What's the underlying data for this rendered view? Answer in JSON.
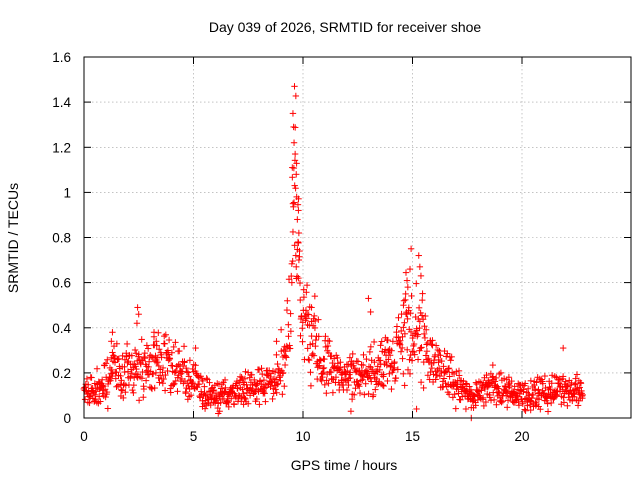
{
  "chart_data": {
    "type": "scatter",
    "title": "Day 039 of 2026, SRMTID for receiver shoe",
    "xlabel": "GPS time / hours",
    "ylabel": "SRMTID / TECUs",
    "xlim": [
      0,
      25
    ],
    "ylim": [
      0,
      1.6
    ],
    "xticks": [
      "0",
      "5",
      "10",
      "15",
      "20"
    ],
    "yticks": [
      "0",
      "0.2",
      "0.4",
      "0.6",
      "0.8",
      "1",
      "1.2",
      "1.4",
      "1.6"
    ],
    "marker": "+",
    "color": "#ff0000",
    "grid": true,
    "x_range_of_data": [
      0,
      22.8
    ],
    "profile": [
      [
        0.0,
        0.11
      ],
      [
        0.5,
        0.12
      ],
      [
        1.0,
        0.17
      ],
      [
        1.3,
        0.24
      ],
      [
        1.7,
        0.19
      ],
      [
        2.0,
        0.21
      ],
      [
        2.5,
        0.22
      ],
      [
        3.0,
        0.24
      ],
      [
        3.4,
        0.26
      ],
      [
        3.8,
        0.23
      ],
      [
        4.3,
        0.2
      ],
      [
        4.8,
        0.18
      ],
      [
        5.2,
        0.15
      ],
      [
        5.5,
        0.1
      ],
      [
        6.0,
        0.09
      ],
      [
        6.5,
        0.11
      ],
      [
        7.0,
        0.13
      ],
      [
        7.5,
        0.14
      ],
      [
        8.0,
        0.13
      ],
      [
        8.5,
        0.16
      ],
      [
        8.9,
        0.2
      ],
      [
        9.2,
        0.26
      ],
      [
        9.45,
        0.55
      ],
      [
        9.6,
        1.05
      ],
      [
        9.75,
        0.85
      ],
      [
        9.9,
        0.5
      ],
      [
        10.2,
        0.36
      ],
      [
        10.6,
        0.28
      ],
      [
        11.0,
        0.24
      ],
      [
        11.5,
        0.21
      ],
      [
        12.0,
        0.19
      ],
      [
        12.5,
        0.17
      ],
      [
        13.0,
        0.21
      ],
      [
        13.5,
        0.24
      ],
      [
        14.0,
        0.25
      ],
      [
        14.4,
        0.3
      ],
      [
        14.7,
        0.42
      ],
      [
        15.0,
        0.35
      ],
      [
        15.4,
        0.4
      ],
      [
        15.8,
        0.26
      ],
      [
        16.3,
        0.22
      ],
      [
        16.8,
        0.17
      ],
      [
        17.3,
        0.12
      ],
      [
        17.8,
        0.09
      ],
      [
        18.3,
        0.13
      ],
      [
        18.8,
        0.14
      ],
      [
        19.3,
        0.12
      ],
      [
        19.8,
        0.11
      ],
      [
        20.3,
        0.09
      ],
      [
        20.8,
        0.12
      ],
      [
        21.3,
        0.11
      ],
      [
        21.8,
        0.15
      ],
      [
        22.3,
        0.11
      ],
      [
        22.8,
        0.13
      ]
    ],
    "peaks": [
      {
        "x": 9.62,
        "y": 1.47
      },
      {
        "x": 9.55,
        "y": 1.35
      },
      {
        "x": 9.58,
        "y": 1.29
      },
      {
        "x": 9.6,
        "y": 1.22
      },
      {
        "x": 9.65,
        "y": 1.17
      },
      {
        "x": 9.52,
        "y": 1.11
      },
      {
        "x": 9.7,
        "y": 1.08
      },
      {
        "x": 9.63,
        "y": 1.03
      },
      {
        "x": 9.72,
        "y": 0.98
      },
      {
        "x": 9.55,
        "y": 0.95
      },
      {
        "x": 9.8,
        "y": 0.92
      },
      {
        "x": 9.75,
        "y": 0.88
      },
      {
        "x": 9.82,
        "y": 0.82
      },
      {
        "x": 9.78,
        "y": 0.78
      },
      {
        "x": 9.85,
        "y": 0.74
      },
      {
        "x": 9.68,
        "y": 0.72
      },
      {
        "x": 9.7,
        "y": 0.67
      },
      {
        "x": 9.8,
        "y": 0.62
      },
      {
        "x": 9.5,
        "y": 0.6
      },
      {
        "x": 2.45,
        "y": 0.49
      },
      {
        "x": 2.5,
        "y": 0.46
      },
      {
        "x": 2.42,
        "y": 0.42
      },
      {
        "x": 14.95,
        "y": 0.75
      },
      {
        "x": 15.3,
        "y": 0.72
      },
      {
        "x": 15.35,
        "y": 0.67
      },
      {
        "x": 14.9,
        "y": 0.66
      },
      {
        "x": 14.8,
        "y": 0.58
      },
      {
        "x": 14.7,
        "y": 0.55
      },
      {
        "x": 15.4,
        "y": 0.63
      },
      {
        "x": 14.6,
        "y": 0.5
      },
      {
        "x": 14.75,
        "y": 0.46
      },
      {
        "x": 13.0,
        "y": 0.53
      },
      {
        "x": 13.1,
        "y": 0.47
      },
      {
        "x": 10.55,
        "y": 0.54
      },
      {
        "x": 10.4,
        "y": 0.49
      },
      {
        "x": 10.2,
        "y": 0.46
      },
      {
        "x": 1.3,
        "y": 0.38
      },
      {
        "x": 1.25,
        "y": 0.34
      },
      {
        "x": 3.2,
        "y": 0.38
      },
      {
        "x": 3.3,
        "y": 0.34
      },
      {
        "x": 21.9,
        "y": 0.31
      },
      {
        "x": 5.1,
        "y": 0.31
      },
      {
        "x": 8.8,
        "y": 0.34
      }
    ],
    "troughs": [
      {
        "x": 17.7,
        "y": 0.0
      },
      {
        "x": 12.2,
        "y": 0.03
      },
      {
        "x": 15.2,
        "y": 0.04
      },
      {
        "x": 6.2,
        "y": 0.03
      }
    ]
  }
}
